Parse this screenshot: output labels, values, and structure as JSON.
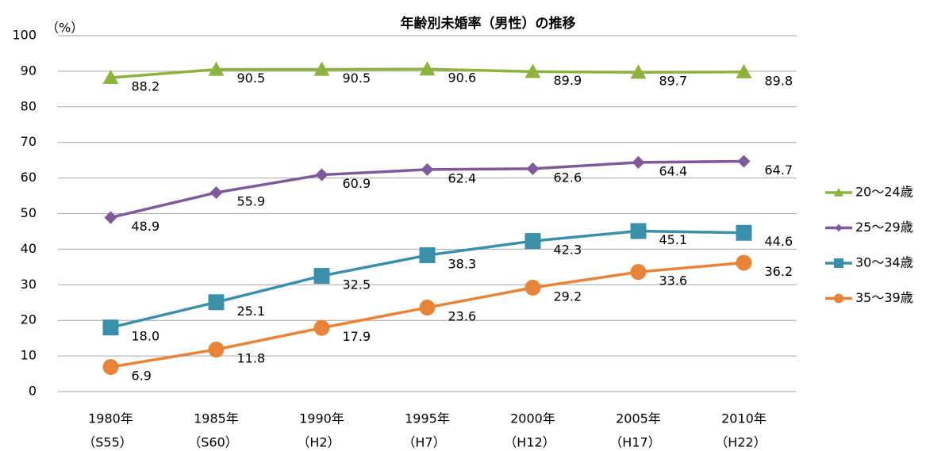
{
  "chart_data": {
    "type": "line",
    "title": "年齢別未婚率（男性）の推移",
    "y_unit": "（%）",
    "categories": [
      "1980年",
      "1985年",
      "1990年",
      "1995年",
      "2000年",
      "2005年",
      "2010年"
    ],
    "category_sublabels": [
      "（S55）",
      "（S60）",
      "（H2）",
      "（H7）",
      "（H12）",
      "（H17）",
      "（H22）"
    ],
    "ylim": [
      0,
      100
    ],
    "yticks": [
      0,
      10,
      20,
      30,
      40,
      50,
      60,
      70,
      80,
      90,
      100
    ],
    "grid": true,
    "legend": "right",
    "series": [
      {
        "name": "20〜24歳",
        "color": "#8db33f",
        "marker": "triangle",
        "values": [
          88.2,
          90.5,
          90.5,
          90.6,
          89.9,
          89.7,
          89.8
        ]
      },
      {
        "name": "25〜29歳",
        "color": "#7e5a9b",
        "marker": "diamond",
        "values": [
          48.9,
          55.9,
          60.9,
          62.4,
          62.6,
          64.4,
          64.7
        ]
      },
      {
        "name": "30〜34歳",
        "color": "#3a8fab",
        "marker": "square",
        "values": [
          18.0,
          25.1,
          32.5,
          38.3,
          42.3,
          45.1,
          44.6
        ],
        "value_labels": [
          "18.0",
          "25.1",
          "32.5",
          "38.3",
          "42.3",
          "45.1",
          "44.6"
        ]
      },
      {
        "name": "35〜39歳",
        "color": "#e8843a",
        "marker": "circle",
        "values": [
          6.9,
          11.8,
          17.9,
          23.6,
          29.2,
          33.6,
          36.2
        ]
      }
    ]
  }
}
